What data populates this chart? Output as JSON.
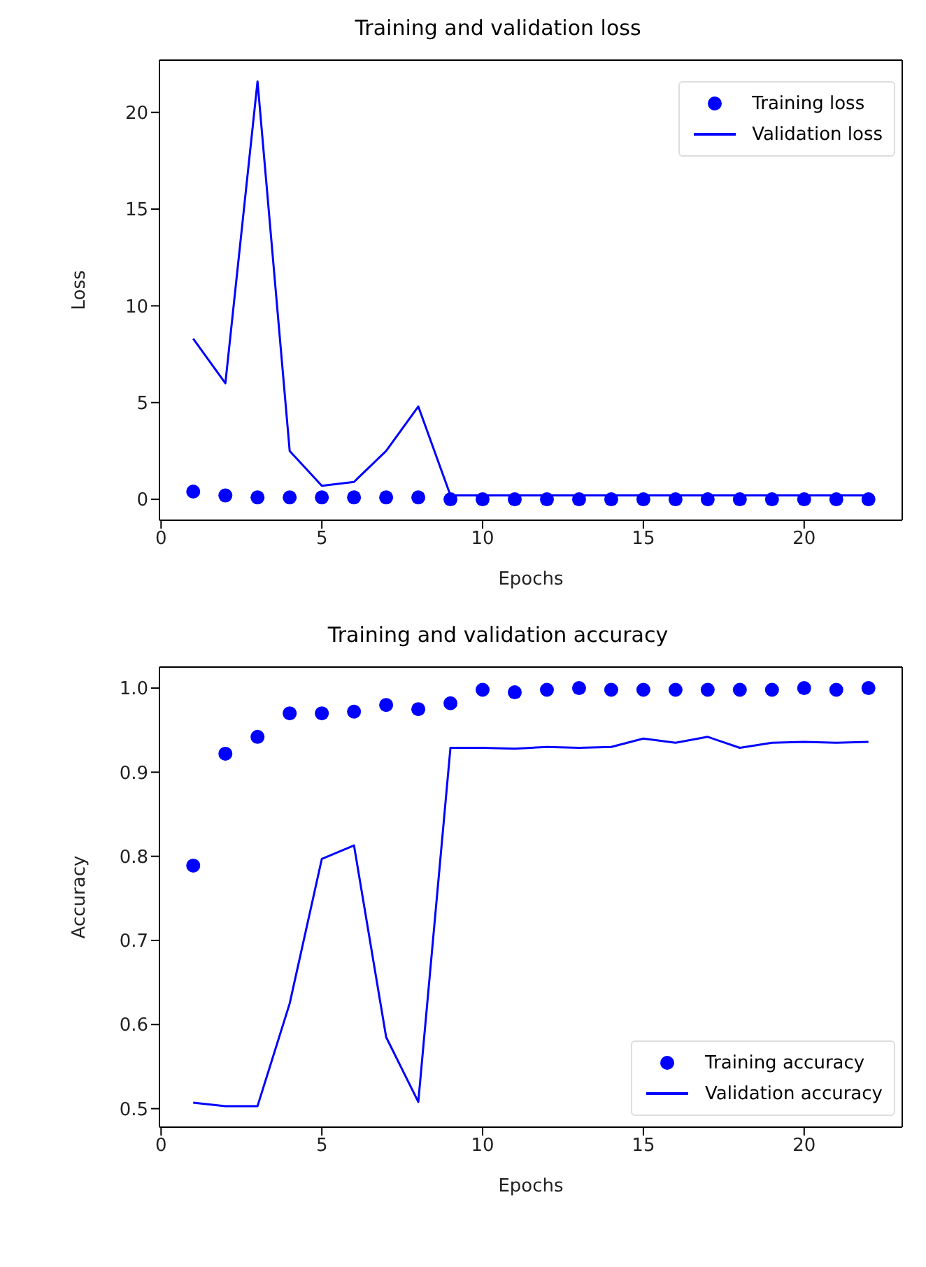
{
  "chart_data": [
    {
      "type": "line",
      "title": "Training and validation loss",
      "xlabel": "Epochs",
      "ylabel": "Loss",
      "x": [
        1,
        2,
        3,
        4,
        5,
        6,
        7,
        8,
        9,
        10,
        11,
        12,
        13,
        14,
        15,
        16,
        17,
        18,
        19,
        20,
        21,
        22
      ],
      "series": [
        {
          "name": "Training loss",
          "type": "scatter",
          "color": "#0000ff",
          "values": [
            0.4,
            0.2,
            0.1,
            0.1,
            0.1,
            0.1,
            0.1,
            0.1,
            0.0,
            0.0,
            0.0,
            0.0,
            0.0,
            0.0,
            0.0,
            0.0,
            0.0,
            0.0,
            0.0,
            0.0,
            0.0,
            0.0
          ]
        },
        {
          "name": "Validation loss",
          "color": "#0000ff",
          "values": [
            8.3,
            6.0,
            21.6,
            2.5,
            0.7,
            0.9,
            2.5,
            4.8,
            0.2,
            0.2,
            0.2,
            0.2,
            0.2,
            0.2,
            0.2,
            0.2,
            0.2,
            0.2,
            0.2,
            0.2,
            0.2,
            0.2
          ]
        }
      ],
      "xlim": [
        -0.05,
        23.05
      ],
      "xticks": [
        0,
        5,
        10,
        15,
        20
      ],
      "ylim": [
        -1.08,
        22.7
      ],
      "yticks": [
        0,
        5,
        10,
        15,
        20
      ],
      "grid": false,
      "legend": "top right"
    },
    {
      "type": "line",
      "title": "Training and validation accuracy",
      "xlabel": "Epochs",
      "ylabel": "Accuracy",
      "x": [
        1,
        2,
        3,
        4,
        5,
        6,
        7,
        8,
        9,
        10,
        11,
        12,
        13,
        14,
        15,
        16,
        17,
        18,
        19,
        20,
        21,
        22
      ],
      "series": [
        {
          "name": "Training accuracy",
          "type": "scatter",
          "color": "#0000ff",
          "values": [
            0.789,
            0.922,
            0.942,
            0.97,
            0.97,
            0.972,
            0.98,
            0.975,
            0.982,
            0.998,
            0.995,
            0.998,
            1.0,
            0.998,
            0.998,
            0.998,
            0.998,
            0.998,
            0.998,
            1.0,
            0.998,
            1.0
          ]
        },
        {
          "name": "Validation accuracy",
          "color": "#0000ff",
          "values": [
            0.507,
            0.503,
            0.503,
            0.625,
            0.797,
            0.813,
            0.585,
            0.508,
            0.929,
            0.929,
            0.928,
            0.93,
            0.929,
            0.93,
            0.94,
            0.935,
            0.942,
            0.929,
            0.935,
            0.936,
            0.935,
            0.936
          ]
        }
      ],
      "xlim": [
        -0.05,
        23.05
      ],
      "xticks": [
        0,
        5,
        10,
        15,
        20
      ],
      "ylim": [
        0.478,
        1.025
      ],
      "yticks": [
        {
          "value": 0.5,
          "label": "0.5"
        },
        {
          "value": 0.6,
          "label": "0.6"
        },
        {
          "value": 0.7,
          "label": "0.7"
        },
        {
          "value": 0.8,
          "label": "0.8"
        },
        {
          "value": 0.9,
          "label": "0.9"
        },
        {
          "value": 1.0,
          "label": "1.0"
        }
      ],
      "grid": false,
      "legend": "bottom right"
    }
  ]
}
